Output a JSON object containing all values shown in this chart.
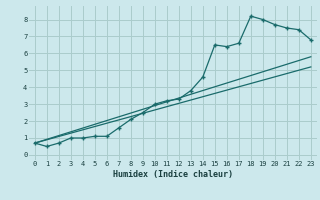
{
  "xlabel": "Humidex (Indice chaleur)",
  "bg_color": "#cce8ec",
  "grid_color": "#aacccc",
  "line_color": "#1a6b6b",
  "x_ticks": [
    0,
    1,
    2,
    3,
    4,
    5,
    6,
    7,
    8,
    9,
    10,
    11,
    12,
    13,
    14,
    15,
    16,
    17,
    18,
    19,
    20,
    21,
    22,
    23
  ],
  "y_ticks": [
    0,
    1,
    2,
    3,
    4,
    5,
    6,
    7,
    8
  ],
  "ylim": [
    -0.3,
    8.8
  ],
  "xlim": [
    -0.5,
    23.5
  ],
  "line1_x": [
    0,
    1,
    2,
    3,
    4,
    5,
    6,
    7,
    8,
    9,
    10,
    11,
    12,
    13,
    14,
    15,
    16,
    17,
    18,
    19,
    20,
    21,
    22,
    23
  ],
  "line1_y": [
    0.7,
    0.5,
    0.7,
    1.0,
    1.0,
    1.1,
    1.1,
    1.6,
    2.1,
    2.5,
    3.0,
    3.2,
    3.3,
    3.8,
    4.6,
    6.5,
    6.4,
    6.6,
    8.2,
    8.0,
    7.7,
    7.5,
    7.4,
    6.8
  ],
  "line2_x": [
    0,
    23
  ],
  "line2_y": [
    0.7,
    5.2
  ],
  "line3_x": [
    0,
    23
  ],
  "line3_y": [
    0.7,
    5.8
  ]
}
